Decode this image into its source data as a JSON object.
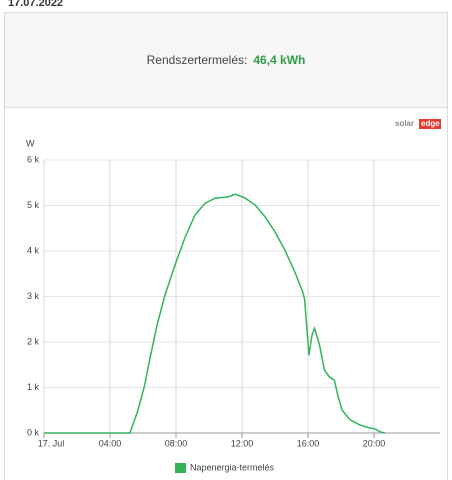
{
  "header": {
    "date": "17.07.2022",
    "label": "Rendszertermelés:",
    "value": "46,4 kWh"
  },
  "logo": [
    "solar",
    "edge"
  ],
  "chart_data": {
    "type": "line",
    "y_label": "W",
    "x": [
      0,
      5.2,
      5.27,
      5.7,
      6.1,
      6.4,
      6.85,
      7.33,
      7.94,
      8.55,
      9.15,
      9.76,
      10.36,
      11.15,
      11.6,
      12.2,
      12.8,
      13.4,
      14,
      14.6,
      15.2,
      15.7,
      15.8,
      15.94,
      16.06,
      16.24,
      16.4,
      16.7,
      17,
      17.3,
      17.6,
      17.8,
      18.06,
      18.55,
      19.15,
      19.76,
      20.06,
      20.4,
      20.67
    ],
    "series": [
      {
        "name": "Napenergia-termelés",
        "color": "#33b35a",
        "values": [
          0,
          0,
          66,
          505,
          1050,
          1600,
          2370,
          3030,
          3690,
          4300,
          4790,
          5050,
          5160,
          5190,
          5250,
          5160,
          5010,
          4750,
          4420,
          4020,
          3540,
          3080,
          2920,
          2260,
          1710,
          2150,
          2300,
          1930,
          1380,
          1230,
          1160,
          840,
          505,
          290,
          175,
          110,
          90,
          22,
          0
        ]
      }
    ],
    "xlim": [
      0,
      24
    ],
    "xticks": [
      {
        "value": 0,
        "label": "17. Jul"
      },
      {
        "value": 4,
        "label": "04:00"
      },
      {
        "value": 8,
        "label": "08:00"
      },
      {
        "value": 12,
        "label": "12:00"
      },
      {
        "value": 16,
        "label": "16:00"
      },
      {
        "value": 20,
        "label": "20:00"
      }
    ],
    "ylim": [
      0,
      6000
    ],
    "yticks": [
      {
        "value": 0,
        "label": "0 k"
      },
      {
        "value": 1000,
        "label": "1 k"
      },
      {
        "value": 2000,
        "label": "2 k"
      },
      {
        "value": 3000,
        "label": "3 k"
      },
      {
        "value": 4000,
        "label": "4 k"
      },
      {
        "value": 5000,
        "label": "5 k"
      },
      {
        "value": 6000,
        "label": "6 k"
      }
    ],
    "grid": true
  }
}
